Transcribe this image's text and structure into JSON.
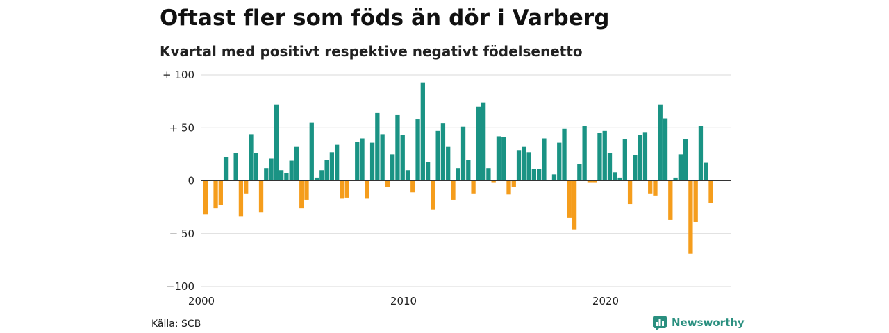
{
  "header": {
    "title": "Oftast fler som föds än dör i Varberg",
    "subtitle": "Kvartal med positivt respektive negativt födelsenetto"
  },
  "footer": {
    "source": "Källa: SCB",
    "brand": "Newsworthy",
    "brand_icon": "bar-chart-logo-icon"
  },
  "colors": {
    "positive": "#1a9384",
    "negative": "#f59d1c",
    "grid": "#d9d9d9",
    "brand": "#2a8f7f"
  },
  "chart_data": {
    "type": "bar",
    "title": "Oftast fler som föds än dör i Varberg",
    "subtitle": "Kvartal med positivt respektive negativt födelsenetto",
    "xlabel": "",
    "ylabel": "",
    "ylim": [
      -100,
      100
    ],
    "y_ticks": [
      {
        "value": 100,
        "label": "+ 100"
      },
      {
        "value": 50,
        "label": "+  50"
      },
      {
        "value": 0,
        "label": "0"
      },
      {
        "value": -50,
        "label": "− 50"
      },
      {
        "value": -100,
        "label": "−100"
      }
    ],
    "x_ticks": [
      {
        "year": 2000,
        "label": "2000"
      },
      {
        "year": 2010,
        "label": "2010"
      },
      {
        "year": 2020,
        "label": "2020"
      }
    ],
    "x_start": "2000-Q1",
    "grid": true,
    "legend": "none",
    "values": [
      -32,
      0,
      -26,
      -23,
      22,
      0,
      26,
      -34,
      -12,
      44,
      26,
      -30,
      12,
      21,
      72,
      10,
      7,
      19,
      32,
      -26,
      -18,
      55,
      3,
      10,
      20,
      27,
      34,
      -17,
      -16,
      0,
      37,
      40,
      -17,
      36,
      64,
      44,
      -6,
      25,
      62,
      43,
      10,
      -11,
      58,
      93,
      18,
      -27,
      47,
      54,
      32,
      -18,
      12,
      51,
      20,
      -12,
      70,
      74,
      12,
      -2,
      42,
      41,
      -13,
      -6,
      29,
      32,
      27,
      11,
      11,
      40,
      0,
      6,
      36,
      49,
      -35,
      -46,
      16,
      52,
      -2,
      -2,
      45,
      47,
      26,
      8,
      3,
      39,
      -22,
      24,
      43,
      46,
      -12,
      -14,
      72,
      59,
      -37,
      3,
      25,
      39,
      -69,
      -39,
      52,
      17,
      -21
    ]
  }
}
